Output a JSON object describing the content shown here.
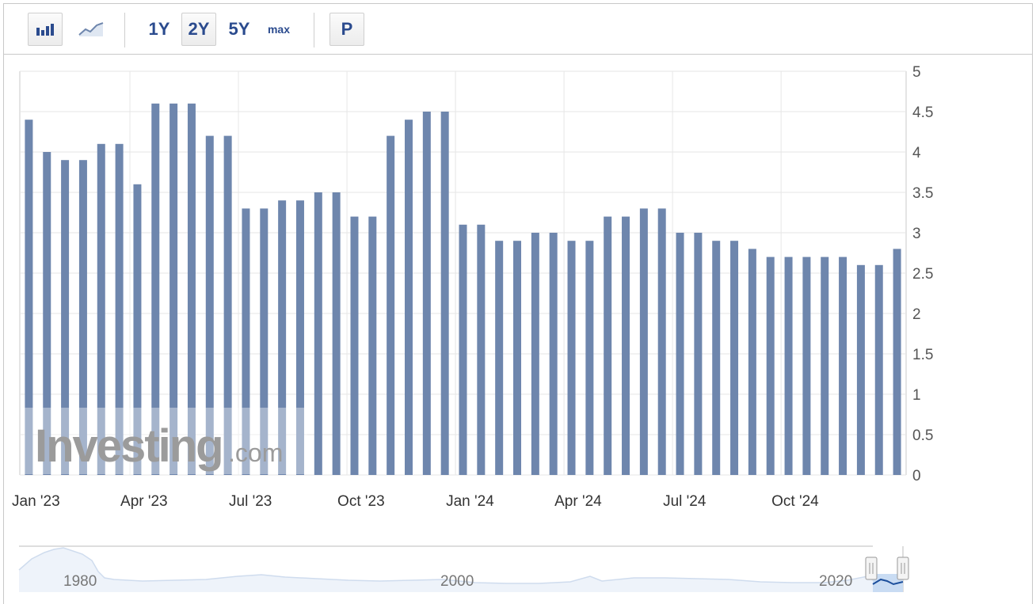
{
  "toolbar": {
    "bar_chart_icon": "bar-chart-icon",
    "line_chart_icon": "line-chart-icon",
    "ranges": [
      "1Y",
      "2Y",
      "5Y",
      "max"
    ],
    "active_range": "2Y",
    "p_label": "P"
  },
  "watermark": {
    "brand": "Investing",
    "suffix": ".com"
  },
  "colors": {
    "bar": "#6e86ad",
    "grid": "#e6e6e6",
    "navigator_fill": "#c9dcf3",
    "navigator_line": "#1c4f9c"
  },
  "chart_data": {
    "type": "bar",
    "x": [
      "Jan '23",
      "Jan '23",
      "Feb '23",
      "Feb '23",
      "Mar '23",
      "Mar '23",
      "Apr '23",
      "Apr '23",
      "May '23",
      "May '23",
      "Jun '23",
      "Jun '23",
      "Jul '23",
      "Jul '23",
      "Aug '23",
      "Aug '23",
      "Sep '23",
      "Sep '23",
      "Oct '23",
      "Oct '23",
      "Nov '23",
      "Nov '23",
      "Dec '23",
      "Dec '23",
      "Jan '24",
      "Jan '24",
      "Feb '24",
      "Feb '24",
      "Mar '24",
      "Mar '24",
      "Apr '24",
      "Apr '24",
      "May '24",
      "May '24",
      "Jun '24",
      "Jun '24",
      "Jul '24",
      "Jul '24",
      "Aug '24",
      "Aug '24",
      "Sep '24",
      "Sep '24",
      "Oct '24",
      "Oct '24",
      "Nov '24",
      "Nov '24",
      "Dec '24",
      "Dec '24",
      "Jan '25"
    ],
    "values": [
      4.4,
      4.0,
      3.9,
      3.9,
      4.1,
      4.1,
      3.6,
      4.6,
      4.6,
      4.6,
      4.2,
      4.2,
      3.3,
      3.3,
      3.4,
      3.4,
      3.5,
      3.5,
      3.2,
      3.2,
      4.2,
      4.4,
      4.5,
      4.5,
      3.1,
      3.1,
      2.9,
      2.9,
      3.0,
      3.0,
      2.9,
      2.9,
      3.2,
      3.2,
      3.3,
      3.3,
      3.0,
      3.0,
      2.9,
      2.9,
      2.8,
      2.7,
      2.7,
      2.7,
      2.7,
      2.7,
      2.6,
      2.6,
      2.8
    ],
    "xticks": [
      "Jan '23",
      "Apr '23",
      "Jul '23",
      "Oct '23",
      "Jan '24",
      "Apr '24",
      "Jul '24",
      "Oct '24"
    ],
    "yticks": [
      "0",
      "0.5",
      "1",
      "1.5",
      "2",
      "2.5",
      "3",
      "3.5",
      "4",
      "4.5",
      "5"
    ],
    "ylim": [
      0,
      5
    ],
    "grid": true,
    "y_axis_position": "right",
    "navigator": {
      "labels": [
        "1980",
        "2000",
        "2020"
      ]
    }
  }
}
